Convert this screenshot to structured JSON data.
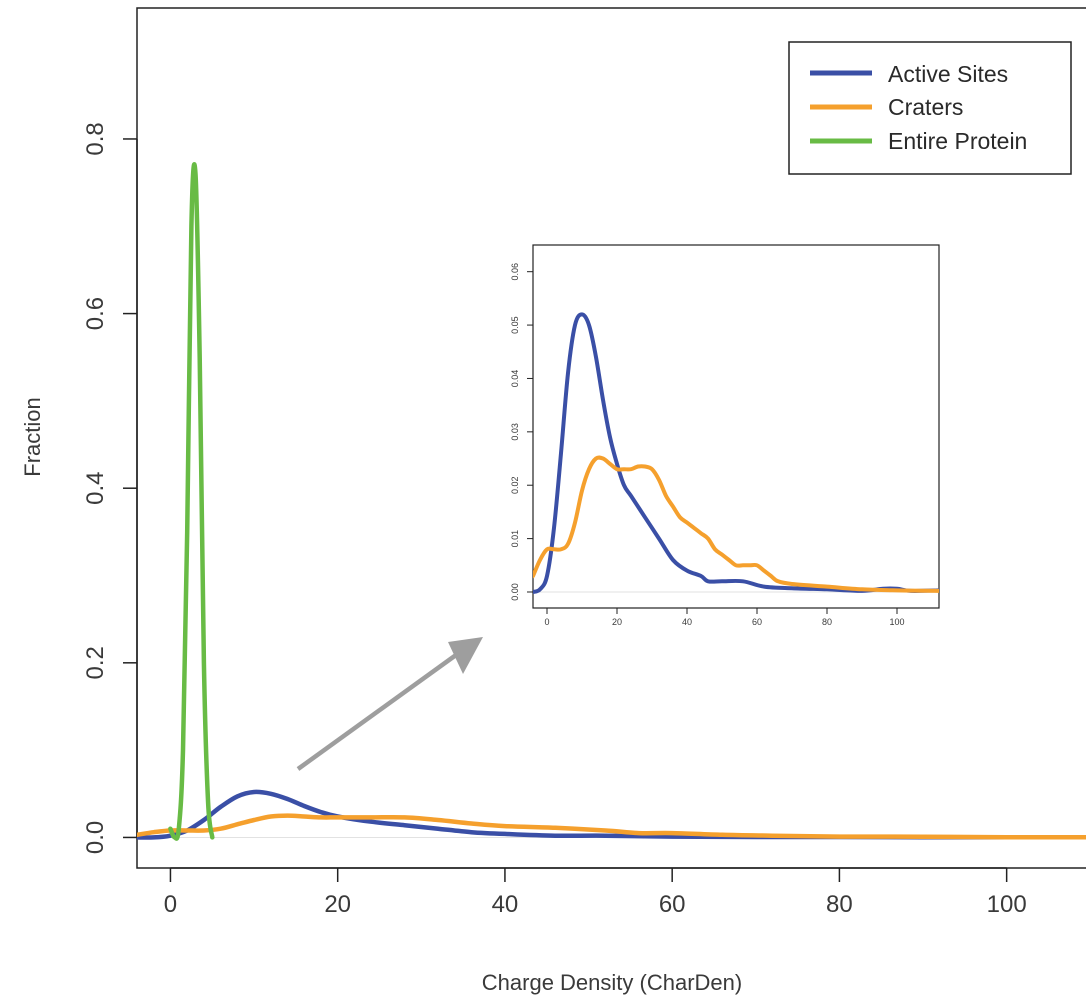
{
  "chart_data": [
    {
      "type": "line",
      "title": "",
      "xlabel": "Charge Density (CharDen)",
      "ylabel": "Fraction",
      "xlim": [
        -4,
        112
      ],
      "ylim": [
        -0.035,
        0.95
      ],
      "xticks": [
        0,
        20,
        40,
        60,
        80,
        100
      ],
      "xtick_labels": [
        "0",
        "20",
        "40",
        "60",
        "80",
        "100"
      ],
      "yticks": [
        0.0,
        0.2,
        0.4,
        0.6,
        0.8
      ],
      "ytick_labels": [
        "0.0",
        "0.2",
        "0.4",
        "0.6",
        "0.8"
      ],
      "grid": false,
      "legend_position": "top-right",
      "colors": {
        "Active Sites": "#3a4fa6",
        "Craters": "#f5a02d",
        "Entire Protein": "#68bb45",
        "arrow": "#9e9e9e"
      },
      "series": [
        {
          "name": "Active Sites",
          "x": [
            -4,
            -2,
            0,
            2,
            4,
            6,
            8,
            10,
            12,
            14,
            16,
            18,
            20,
            24,
            28,
            32,
            36,
            40,
            46,
            52,
            60,
            70,
            80,
            90,
            100,
            112
          ],
          "y": [
            0.0,
            0.0,
            0.002,
            0.008,
            0.02,
            0.035,
            0.047,
            0.052,
            0.05,
            0.044,
            0.036,
            0.029,
            0.024,
            0.018,
            0.014,
            0.01,
            0.006,
            0.004,
            0.002,
            0.002,
            0.001,
            0.0005,
            0.0005,
            0.0003,
            0.0003,
            0.0002
          ]
        },
        {
          "name": "Craters",
          "x": [
            -4,
            -2,
            0,
            2,
            4,
            6,
            8,
            10,
            12,
            14,
            16,
            18,
            20,
            24,
            28,
            32,
            36,
            40,
            46,
            52,
            56,
            60,
            66,
            72,
            80,
            90,
            100,
            112
          ],
          "y": [
            0.003,
            0.006,
            0.008,
            0.008,
            0.008,
            0.01,
            0.015,
            0.02,
            0.024,
            0.025,
            0.024,
            0.023,
            0.023,
            0.023,
            0.023,
            0.02,
            0.016,
            0.013,
            0.011,
            0.008,
            0.005,
            0.005,
            0.003,
            0.002,
            0.001,
            0.0008,
            0.0003,
            0.0002
          ]
        },
        {
          "name": "Entire Protein",
          "x": [
            0,
            0.5,
            1,
            1.5,
            2,
            2.5,
            3,
            3.5,
            4,
            4.5,
            5
          ],
          "y": [
            0.01,
            0.0,
            0.01,
            0.1,
            0.35,
            0.7,
            0.76,
            0.55,
            0.2,
            0.04,
            0.0
          ]
        }
      ]
    },
    {
      "type": "line",
      "title": "",
      "xlabel": "",
      "ylabel": "",
      "xlim": [
        -4,
        112
      ],
      "ylim": [
        -0.003,
        0.065
      ],
      "xticks": [
        0,
        20,
        40,
        60,
        80,
        100
      ],
      "xtick_labels": [
        "0",
        "20",
        "40",
        "60",
        "80",
        "100"
      ],
      "yticks": [
        0.0,
        0.01,
        0.02,
        0.03,
        0.04,
        0.05,
        0.06
      ],
      "ytick_labels": [
        "0.00",
        "0.01",
        "0.02",
        "0.03",
        "0.04",
        "0.05",
        "0.06"
      ],
      "grid": false,
      "series": [
        {
          "name": "Active Sites",
          "x": [
            -4,
            -2,
            0,
            2,
            4,
            6,
            8,
            10,
            12,
            14,
            16,
            18,
            20,
            22,
            24,
            28,
            32,
            36,
            40,
            44,
            46,
            50,
            56,
            62,
            70,
            80,
            90,
            96,
            100,
            104,
            112
          ],
          "y": [
            0.0,
            0.0005,
            0.003,
            0.012,
            0.026,
            0.041,
            0.05,
            0.052,
            0.05,
            0.044,
            0.036,
            0.029,
            0.024,
            0.02,
            0.018,
            0.014,
            0.01,
            0.006,
            0.004,
            0.003,
            0.002,
            0.002,
            0.002,
            0.001,
            0.0007,
            0.0005,
            0.0002,
            0.0006,
            0.0006,
            0.0002,
            0.0003
          ]
        },
        {
          "name": "Craters",
          "x": [
            -4,
            -2,
            0,
            2,
            4,
            6,
            8,
            10,
            12,
            14,
            16,
            18,
            20,
            22,
            24,
            26,
            28,
            30,
            32,
            34,
            36,
            38,
            40,
            42,
            44,
            46,
            48,
            50,
            52,
            54,
            56,
            58,
            60,
            62,
            64,
            66,
            70,
            80,
            90,
            100,
            112
          ],
          "y": [
            0.003,
            0.006,
            0.008,
            0.008,
            0.008,
            0.009,
            0.013,
            0.019,
            0.023,
            0.025,
            0.025,
            0.024,
            0.023,
            0.023,
            0.023,
            0.0235,
            0.0235,
            0.023,
            0.021,
            0.018,
            0.016,
            0.014,
            0.013,
            0.012,
            0.011,
            0.01,
            0.008,
            0.007,
            0.006,
            0.005,
            0.005,
            0.005,
            0.005,
            0.004,
            0.003,
            0.002,
            0.0015,
            0.001,
            0.0005,
            0.0003,
            0.0002
          ]
        }
      ]
    }
  ]
}
